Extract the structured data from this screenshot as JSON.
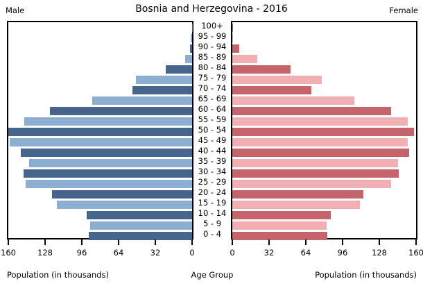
{
  "header": {
    "title": "Bosnia and Herzegovina - 2016",
    "left": "Male",
    "right": "Female"
  },
  "footer": {
    "left_axis_label": "Population (in thousands)",
    "center_label": "Age Group",
    "right_axis_label": "Population (in thousands)"
  },
  "axes": {
    "male_ticks": [
      160,
      128,
      96,
      64,
      32,
      0
    ],
    "female_ticks": [
      0,
      32,
      64,
      96,
      128,
      160
    ],
    "xmax": 160
  },
  "colors": {
    "male_dark": "#46648c",
    "male_light": "#8caed2",
    "female_dark": "#c5646a",
    "female_light": "#f2afb3",
    "border": "#000000"
  },
  "chart_data": {
    "type": "bar",
    "subtype": "population-pyramid",
    "title": "Bosnia and Herzegovina - 2016",
    "unit": "thousands",
    "xlim": [
      0,
      160
    ],
    "xlabel": "Population (in thousands)",
    "ylabel": "Age Group",
    "categories": [
      "100+",
      "95 - 99",
      "90 - 94",
      "85 - 89",
      "80 - 84",
      "75 - 79",
      "70 - 74",
      "65 - 69",
      "60 - 64",
      "55 - 59",
      "50 - 54",
      "45 - 49",
      "40 - 44",
      "35 - 39",
      "30 - 34",
      "25 - 29",
      "20 - 24",
      "15 - 19",
      "10 - 14",
      "5 - 9",
      "0 - 4"
    ],
    "series": [
      {
        "name": "Male",
        "side": "left",
        "values": [
          0.2,
          1,
          2,
          6,
          23,
          49,
          52,
          87,
          124,
          146,
          160,
          159,
          149,
          142,
          147,
          145,
          122,
          118,
          92,
          89,
          90
        ]
      },
      {
        "name": "Female",
        "side": "right",
        "values": [
          0.3,
          0.8,
          6,
          22,
          51,
          78,
          69,
          106,
          138,
          153,
          158,
          153,
          154,
          144,
          145,
          138,
          114,
          111,
          86,
          82,
          83
        ]
      }
    ]
  }
}
